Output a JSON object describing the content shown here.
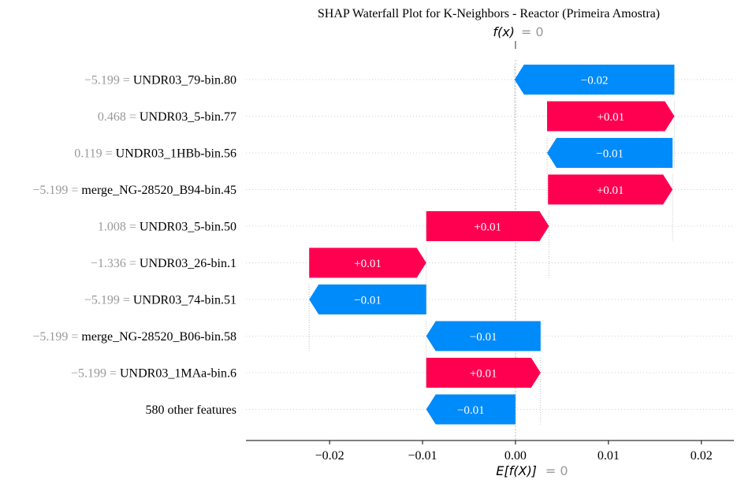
{
  "chart_data": {
    "type": "waterfall",
    "title": "SHAP Waterfall Plot for K-Neighbors - Reactor (Primeira Amostra)",
    "fx_label": "f(x)",
    "fx_value_text": "= 0",
    "efx_label": "E[f(X)]",
    "efx_value_text": "= 0",
    "base_value": 0.0,
    "final_value": 0.0,
    "xlim": [
      -0.029,
      0.0235
    ],
    "x_ticks": [
      -0.02,
      -0.01,
      0.0,
      0.01,
      0.02
    ],
    "x_tick_labels": [
      "−0.02",
      "−0.01",
      "0.00",
      "0.01",
      "0.02"
    ],
    "colors": {
      "positive": "#ff0051",
      "negative": "#008bfb",
      "value_grey": "#999999",
      "text": "#000000"
    },
    "features": [
      {
        "value_text": "−5.199 =",
        "name": "UNDR03_79-bin.80",
        "start": 0.0171,
        "end": -0.0001,
        "label": "−0.02"
      },
      {
        "value_text": "0.468 =",
        "name": "UNDR03_5-bin.77",
        "start": 0.0034,
        "end": 0.0171,
        "label": "+0.01"
      },
      {
        "value_text": "0.119 =",
        "name": "UNDR03_1HBb-bin.56",
        "start": 0.0169,
        "end": 0.0034,
        "label": "−0.01"
      },
      {
        "value_text": "−5.199 =",
        "name": "merge_NG-28520_B94-bin.45",
        "start": 0.0035,
        "end": 0.0169,
        "label": "+0.01"
      },
      {
        "value_text": "1.008 =",
        "name": "UNDR03_5-bin.50",
        "start": -0.0096,
        "end": 0.0036,
        "label": "+0.01"
      },
      {
        "value_text": "−1.336 =",
        "name": "UNDR03_26-bin.1",
        "start": -0.0222,
        "end": -0.0096,
        "label": "+0.01"
      },
      {
        "value_text": "−5.199 =",
        "name": "UNDR03_74-bin.51",
        "start": -0.0096,
        "end": -0.0222,
        "label": "−0.01"
      },
      {
        "value_text": "−5.199 =",
        "name": "merge_NG-28520_B06-bin.58",
        "start": 0.0027,
        "end": -0.0096,
        "label": "−0.01"
      },
      {
        "value_text": "−5.199 =",
        "name": "UNDR03_1MAa-bin.6",
        "start": -0.0096,
        "end": 0.0027,
        "label": "+0.01"
      },
      {
        "value_text": "",
        "name": "580 other features",
        "start": 0.0,
        "end": -0.0096,
        "label": "−0.01"
      }
    ]
  }
}
